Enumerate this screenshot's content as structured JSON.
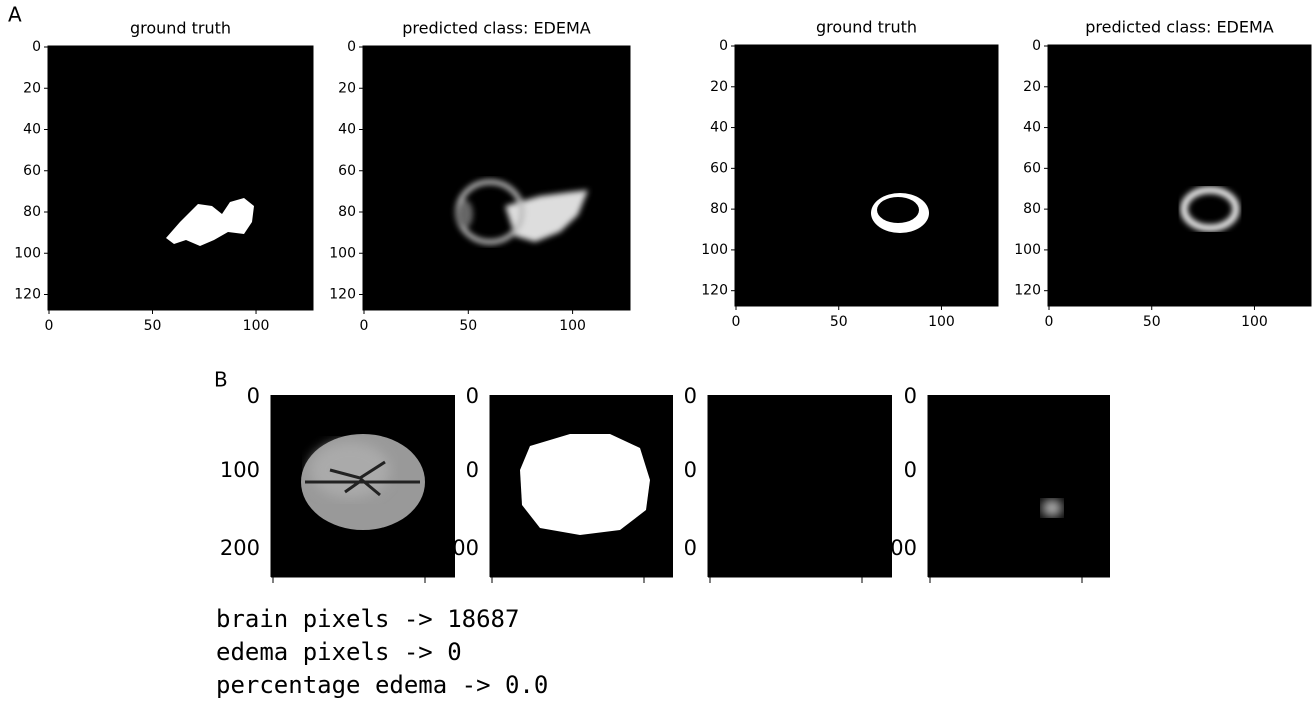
{
  "panel_labels": {
    "a": "A",
    "b": "B"
  },
  "panel_a": {
    "plots": [
      {
        "title": "ground truth",
        "xticks": [
          0,
          50,
          100
        ],
        "yticks": [
          0,
          20,
          40,
          60,
          80,
          100,
          120
        ]
      },
      {
        "title": "predicted class: EDEMA",
        "xticks": [
          0,
          50,
          100
        ],
        "yticks": [
          0,
          20,
          40,
          60,
          80,
          100,
          120
        ]
      },
      {
        "title": "ground truth",
        "xticks": [
          0,
          50,
          100
        ],
        "yticks": [
          0,
          20,
          40,
          60,
          80,
          100,
          120
        ]
      },
      {
        "title": "predicted class: EDEMA",
        "xticks": [
          0,
          50,
          100
        ],
        "yticks": [
          0,
          20,
          40,
          60,
          80,
          100,
          120
        ]
      }
    ]
  },
  "panel_b": {
    "plots": [
      {
        "yticks": [
          "0",
          "100",
          "200"
        ]
      },
      {
        "yticks": [
          "0",
          "0",
          "00"
        ]
      },
      {
        "yticks": [
          "0",
          "0",
          "0"
        ]
      },
      {
        "yticks": [
          "0",
          "0",
          "00"
        ]
      }
    ]
  },
  "stats": [
    "brain pixels -> 18687",
    "edema pixels -> 0",
    "percentage edema -> 0.0"
  ]
}
